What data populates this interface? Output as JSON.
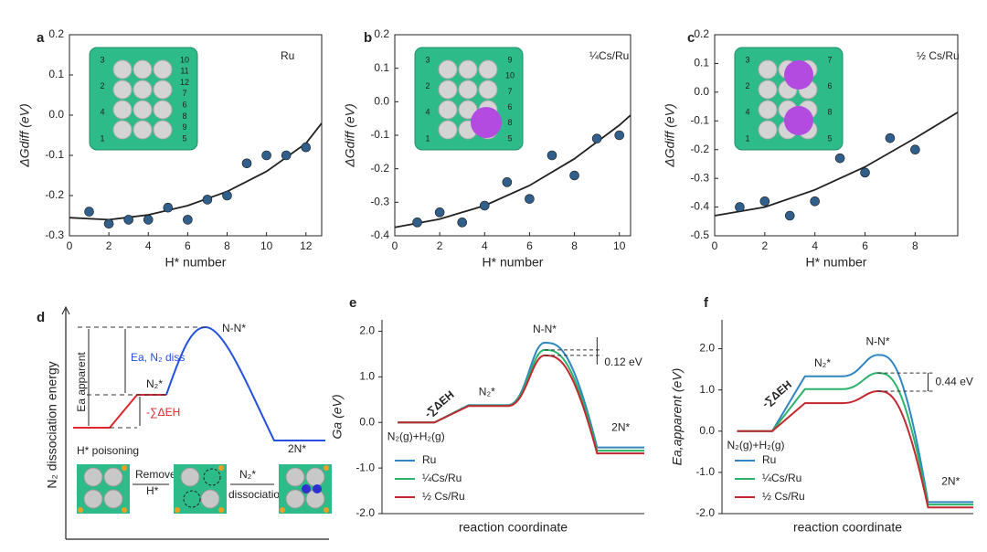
{
  "chart_data": [
    {
      "type": "scatter",
      "panel": "a",
      "annotation": "Ru",
      "color": "#2f5f8a",
      "x": [
        1,
        2,
        3,
        4,
        5,
        6,
        7,
        8,
        9,
        10,
        11,
        12
      ],
      "values": [
        -0.24,
        -0.27,
        -0.26,
        -0.26,
        -0.23,
        -0.26,
        -0.21,
        -0.2,
        -0.12,
        -0.1,
        -0.1,
        -0.08
      ],
      "fit": {
        "color": "#222222",
        "x": [
          0,
          2,
          4,
          6,
          8,
          10,
          12,
          12.8
        ],
        "values": [
          -0.255,
          -0.26,
          -0.248,
          -0.225,
          -0.19,
          -0.14,
          -0.07,
          -0.02
        ]
      },
      "xlim": [
        0,
        12.8
      ],
      "xticks": [
        0,
        2,
        4,
        6,
        8,
        10,
        12
      ],
      "ylim": [
        -0.3,
        0.2
      ],
      "yticks": [
        -0.3,
        -0.2,
        -0.1,
        {
          "value": 0,
          "label": "0.0"
        },
        0.1,
        0.2
      ],
      "x_label": "H* number",
      "y_label": "ΔGdiff (eV)",
      "inset_labels": [
        "3",
        "2",
        "4",
        "1",
        "10",
        "11",
        "12",
        "7",
        "6",
        "8",
        "9",
        "5"
      ]
    },
    {
      "type": "scatter",
      "panel": "b",
      "annotation": "¼Cs/Ru",
      "color": "#2f5f8a",
      "x": [
        1,
        2,
        3,
        4,
        5,
        6,
        7,
        8,
        9,
        10
      ],
      "values": [
        -0.36,
        -0.33,
        -0.36,
        -0.31,
        -0.24,
        -0.29,
        -0.16,
        -0.22,
        -0.11,
        -0.1
      ],
      "fit": {
        "color": "#222222",
        "x": [
          0,
          2,
          4,
          6,
          8,
          10,
          10.5
        ],
        "values": [
          -0.375,
          -0.35,
          -0.31,
          -0.25,
          -0.17,
          -0.07,
          -0.04
        ]
      },
      "xlim": [
        0,
        10.5
      ],
      "xticks": [
        0,
        2,
        4,
        6,
        8,
        10
      ],
      "ylim": [
        -0.4,
        0.2
      ],
      "yticks": [
        -0.4,
        -0.3,
        -0.2,
        -0.1,
        {
          "value": 0,
          "label": "0.0"
        },
        0.1,
        0.2
      ],
      "x_label": "H* number",
      "y_label": "ΔGdiff (eV)",
      "inset_labels": [
        "3",
        "2",
        "4",
        "1",
        "9",
        "10",
        "7",
        "6",
        "8",
        "5"
      ]
    },
    {
      "type": "scatter",
      "panel": "c",
      "annotation": "½ Cs/Ru",
      "color": "#2f5f8a",
      "x": [
        1,
        2,
        3,
        4,
        5,
        6,
        7,
        8
      ],
      "values": [
        -0.4,
        -0.38,
        -0.43,
        -0.38,
        -0.23,
        -0.28,
        -0.16,
        -0.2
      ],
      "fit": {
        "color": "#222222",
        "x": [
          0,
          2,
          4,
          6,
          8,
          9.7
        ],
        "values": [
          -0.43,
          -0.4,
          -0.34,
          -0.26,
          -0.16,
          -0.07
        ]
      },
      "xlim": [
        0,
        9.7
      ],
      "xticks": [
        0,
        2,
        4,
        6,
        8
      ],
      "ylim": [
        -0.5,
        0.2
      ],
      "yticks": [
        -0.5,
        -0.4,
        -0.3,
        -0.2,
        -0.1,
        {
          "value": 0,
          "label": "0.0"
        },
        0.1,
        0.2
      ],
      "x_label": "H* number",
      "y_label": "ΔGdiff (eV)",
      "inset_labels": [
        "3",
        "2",
        "4",
        "1",
        "7",
        "6",
        "8",
        "5"
      ]
    },
    {
      "type": "line",
      "panel": "e",
      "categories": [
        "N₂(g)+H₂(g)",
        "N₂*",
        "N-N*",
        "2N*"
      ],
      "series": [
        {
          "name": "Ru",
          "color": "#2f86c0",
          "values": [
            0,
            0.38,
            1.75,
            -0.55
          ]
        },
        {
          "name": "¼Cs/Ru",
          "color": "#2bb36b",
          "values": [
            0,
            0.37,
            1.59,
            -0.62
          ]
        },
        {
          "name": "½ Cs/Ru",
          "color": "#c3282e",
          "values": [
            0,
            0.36,
            1.47,
            -0.68
          ]
        }
      ],
      "ylim": [
        -2,
        2.25
      ],
      "yticks": [
        {
          "value": -2,
          "label": "-2.0"
        },
        {
          "value": -1,
          "label": "-1.0"
        },
        {
          "value": 0,
          "label": "0.0"
        },
        {
          "value": 1,
          "label": "1.0"
        },
        {
          "value": 2,
          "label": "2.0"
        }
      ],
      "x_label": "reaction coordinate",
      "y_label": "Ga (eV)",
      "gap_label": "0.12 eV",
      "sum_label": "-∑ΔEH",
      "legend": "lower left"
    },
    {
      "type": "line",
      "panel": "f",
      "categories": [
        "N₂(g)+H₂(g)",
        "N₂*",
        "N-N*",
        "2N*"
      ],
      "series": [
        {
          "name": "Ru",
          "color": "#2f86c0",
          "values": [
            0,
            1.33,
            1.85,
            -1.72
          ]
        },
        {
          "name": "¼Cs/Ru",
          "color": "#2bb36b",
          "values": [
            0,
            1.02,
            1.41,
            -1.78
          ]
        },
        {
          "name": "½ Cs/Ru",
          "color": "#c3282e",
          "values": [
            0,
            0.68,
            0.97,
            -1.85
          ]
        }
      ],
      "ylim": [
        -2,
        2.7
      ],
      "yticks": [
        {
          "value": -2,
          "label": "-2.0"
        },
        {
          "value": -1,
          "label": "-1.0"
        },
        {
          "value": 0,
          "label": "0.0"
        },
        {
          "value": 1,
          "label": "1.0"
        },
        {
          "value": 2,
          "label": "2.0"
        }
      ],
      "x_label": "reaction coordinate",
      "y_label": "Ea,apparent (eV)",
      "gap_label": "0.44 eV",
      "sum_label": "-∑ΔEH",
      "legend": "lower left"
    }
  ],
  "diagram": {
    "panel": "d",
    "y_label": "N₂ dissociation energy",
    "states": [
      "N-N*",
      "N₂*",
      "2N*"
    ],
    "ea_apparent": "Ea apparent",
    "ea_diss": "Ea, N₂ diss",
    "sum": "-∑ΔEH",
    "poisoning": "H* poisoning",
    "steps": [
      "Remove",
      "H*",
      "N₂*",
      "dissociation"
    ]
  }
}
